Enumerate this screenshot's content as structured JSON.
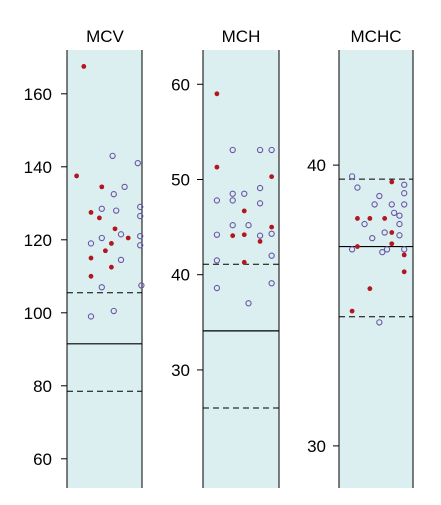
{
  "colors": {
    "panel_fill": "#dbeef0",
    "filled_marker": "#b2161e",
    "open_marker": "#6a55a4",
    "axis": "#000000"
  },
  "chart_data": [
    {
      "type": "scatter",
      "title": "MCV",
      "ylim": [
        52,
        172
      ],
      "yticks": [
        60,
        80,
        100,
        120,
        140,
        160
      ],
      "reference_line": 91.5,
      "dashed_lines": [
        78.5,
        105.5
      ],
      "grid": false,
      "legend": "none",
      "series": [
        {
          "marker": "filled",
          "points": [
            [
              0.18,
              167.5
            ],
            [
              0.06,
              137.5
            ],
            [
              0.3,
              127.5
            ],
            [
              0.48,
              134.5
            ],
            [
              0.44,
              126.0
            ],
            [
              0.7,
              123.0
            ],
            [
              0.92,
              120.5
            ],
            [
              0.64,
              119.0
            ],
            [
              0.3,
              115.0
            ],
            [
              0.54,
              117.0
            ],
            [
              0.64,
              112.5
            ],
            [
              0.3,
              110.0
            ]
          ]
        },
        {
          "marker": "open",
          "points": [
            [
              0.3,
              99.0
            ],
            [
              0.68,
              100.5
            ],
            [
              0.48,
              107.0
            ],
            [
              0.3,
              119.0
            ],
            [
              0.48,
              120.5
            ],
            [
              0.72,
              128.0
            ],
            [
              0.8,
              114.5
            ],
            [
              0.8,
              121.5
            ],
            [
              1.12,
              121.0
            ],
            [
              1.12,
              118.5
            ],
            [
              1.12,
              126.5
            ],
            [
              1.12,
              129.0
            ],
            [
              1.08,
              141.0
            ],
            [
              0.66,
              143.0
            ],
            [
              0.86,
              134.5
            ],
            [
              0.68,
              132.5
            ],
            [
              0.48,
              128.5
            ],
            [
              1.14,
              107.5
            ]
          ]
        }
      ]
    },
    {
      "type": "scatter",
      "title": "MCH",
      "ylim": [
        17.6,
        63.6
      ],
      "yticks": [
        30,
        40,
        50,
        60
      ],
      "reference_line": 34.1,
      "dashed_lines": [
        26.0,
        41.1
      ],
      "grid": false,
      "legend": "none",
      "series": [
        {
          "marker": "filled",
          "points": [
            [
              0.13,
              59.0
            ],
            [
              0.13,
              51.3
            ],
            [
              0.39,
              44.1
            ],
            [
              0.58,
              46.7
            ],
            [
              0.58,
              44.2
            ],
            [
              1.03,
              50.3
            ],
            [
              1.03,
              45.0
            ],
            [
              0.84,
              43.5
            ],
            [
              0.58,
              41.3
            ]
          ]
        },
        {
          "marker": "open",
          "points": [
            [
              0.13,
              38.6
            ],
            [
              0.65,
              37.0
            ],
            [
              0.13,
              41.5
            ],
            [
              0.13,
              44.2
            ],
            [
              0.13,
              47.8
            ],
            [
              0.39,
              47.8
            ],
            [
              0.39,
              48.5
            ],
            [
              0.58,
              48.5
            ],
            [
              0.84,
              47.5
            ],
            [
              0.84,
              49.1
            ],
            [
              0.39,
              53.1
            ],
            [
              0.84,
              53.1
            ],
            [
              1.03,
              53.1
            ],
            [
              0.84,
              44.1
            ],
            [
              1.03,
              44.3
            ],
            [
              1.03,
              42.0
            ],
            [
              1.03,
              39.1
            ],
            [
              0.39,
              45.2
            ],
            [
              0.65,
              45.2
            ]
          ]
        }
      ]
    },
    {
      "type": "scatter",
      "title": "MCHC",
      "ylim": [
        28.5,
        44.1
      ],
      "yticks": [
        30,
        40
      ],
      "reference_line": 37.1,
      "dashed_lines": [
        34.6,
        39.5
      ],
      "grid": false,
      "legend": "none",
      "series": [
        {
          "marker": "filled",
          "points": [
            [
              0.12,
              34.8
            ],
            [
              0.21,
              38.1
            ],
            [
              0.21,
              37.1
            ],
            [
              0.42,
              38.1
            ],
            [
              0.42,
              35.6
            ],
            [
              0.67,
              38.1
            ],
            [
              0.79,
              37.6
            ],
            [
              0.79,
              37.2
            ],
            [
              0.79,
              39.4
            ],
            [
              1.0,
              36.8
            ],
            [
              1.0,
              36.2
            ]
          ]
        },
        {
          "marker": "open",
          "points": [
            [
              0.12,
              39.6
            ],
            [
              0.21,
              39.2
            ],
            [
              0.12,
              37.0
            ],
            [
              0.33,
              37.9
            ],
            [
              0.46,
              37.4
            ],
            [
              0.5,
              38.6
            ],
            [
              0.58,
              38.9
            ],
            [
              0.67,
              37.6
            ],
            [
              0.83,
              38.3
            ],
            [
              0.92,
              38.2
            ],
            [
              1.0,
              39.0
            ],
            [
              1.0,
              38.6
            ],
            [
              1.0,
              37.0
            ],
            [
              0.92,
              37.9
            ],
            [
              0.71,
              37.0
            ],
            [
              0.63,
              36.9
            ],
            [
              0.92,
              37.5
            ],
            [
              0.58,
              34.4
            ],
            [
              0.79,
              38.6
            ],
            [
              1.0,
              39.3
            ]
          ]
        }
      ]
    }
  ]
}
